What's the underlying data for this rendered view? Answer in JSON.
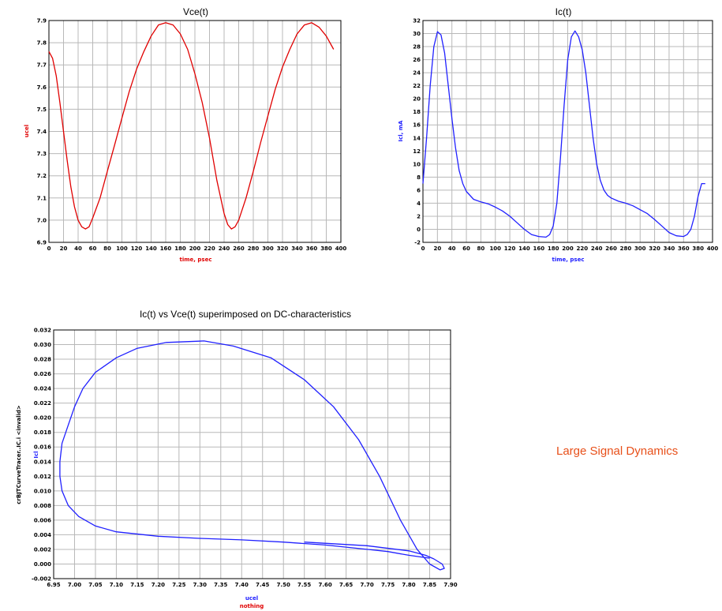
{
  "annotation": "Large Signal Dynamics",
  "colors": {
    "red": "#e00000",
    "blue": "#2020ff",
    "grid": "#b8b8b8"
  },
  "chart_data": [
    {
      "type": "line",
      "title": "Vce(t)",
      "xlabel": "time, psec",
      "ylabel": "ucel",
      "xlim": [
        0,
        400
      ],
      "ylim": [
        6.9,
        7.9
      ],
      "xticks": [
        "0",
        "20",
        "40",
        "60",
        "80",
        "100",
        "120",
        "140",
        "160",
        "180",
        "200",
        "220",
        "240",
        "260",
        "280",
        "300",
        "320",
        "340",
        "360",
        "380",
        "400"
      ],
      "yticks": [
        "6.9",
        "7.0",
        "7.1",
        "7.2",
        "7.3",
        "7.4",
        "7.5",
        "7.6",
        "7.7",
        "7.8",
        "7.9"
      ],
      "grid": true,
      "series": [
        {
          "color": "#e00000",
          "x": [
            0,
            5,
            10,
            15,
            20,
            25,
            30,
            35,
            40,
            45,
            50,
            55,
            60,
            70,
            80,
            90,
            100,
            110,
            120,
            130,
            140,
            150,
            160,
            170,
            180,
            190,
            200,
            210,
            220,
            230,
            240,
            245,
            250,
            255,
            260,
            270,
            280,
            290,
            300,
            310,
            320,
            330,
            340,
            350,
            360,
            370,
            380,
            390
          ],
          "y": [
            7.76,
            7.73,
            7.65,
            7.53,
            7.4,
            7.27,
            7.15,
            7.06,
            7.0,
            6.97,
            6.96,
            6.97,
            7.01,
            7.1,
            7.22,
            7.34,
            7.46,
            7.58,
            7.68,
            7.76,
            7.83,
            7.88,
            7.89,
            7.88,
            7.84,
            7.77,
            7.66,
            7.53,
            7.37,
            7.18,
            7.03,
            6.98,
            6.96,
            6.97,
            7.0,
            7.1,
            7.22,
            7.35,
            7.47,
            7.59,
            7.69,
            7.77,
            7.84,
            7.88,
            7.89,
            7.87,
            7.83,
            7.77
          ]
        }
      ]
    },
    {
      "type": "line",
      "title": "Ic(t)",
      "xlabel": "time, psec",
      "ylabel": "Icl, mA",
      "xlim": [
        0,
        400
      ],
      "ylim": [
        -2,
        32
      ],
      "xticks": [
        "0",
        "20",
        "40",
        "60",
        "80",
        "100",
        "120",
        "140",
        "160",
        "180",
        "200",
        "220",
        "240",
        "260",
        "280",
        "300",
        "320",
        "340",
        "360",
        "380",
        "400"
      ],
      "yticks": [
        "-2",
        "0",
        "2",
        "4",
        "6",
        "8",
        "10",
        "12",
        "14",
        "16",
        "18",
        "20",
        "22",
        "24",
        "26",
        "28",
        "30",
        "32"
      ],
      "grid": true,
      "series": [
        {
          "color": "#2020ff",
          "x": [
            0,
            5,
            10,
            15,
            20,
            25,
            30,
            35,
            40,
            45,
            50,
            55,
            60,
            70,
            80,
            90,
            100,
            110,
            120,
            130,
            140,
            150,
            160,
            170,
            175,
            180,
            185,
            190,
            195,
            200,
            205,
            210,
            215,
            220,
            225,
            230,
            235,
            240,
            245,
            250,
            255,
            260,
            270,
            280,
            290,
            300,
            310,
            320,
            330,
            340,
            350,
            360,
            365,
            370,
            375,
            380,
            385,
            390
          ],
          "y": [
            7,
            14,
            22,
            28,
            30.3,
            29.8,
            27,
            22,
            17,
            12.5,
            9,
            7,
            5.8,
            4.6,
            4.2,
            3.9,
            3.4,
            2.8,
            2.0,
            1.0,
            0,
            -0.8,
            -1.1,
            -1.2,
            -0.8,
            0.5,
            4,
            11,
            19,
            26,
            29.5,
            30.4,
            29.5,
            27.5,
            24,
            19,
            14,
            10,
            7.5,
            6,
            5.2,
            4.8,
            4.3,
            4.0,
            3.6,
            3.0,
            2.4,
            1.5,
            0.5,
            -0.5,
            -1.0,
            -1.1,
            -0.8,
            0,
            2,
            5,
            7,
            7
          ]
        }
      ]
    },
    {
      "type": "line",
      "title": "Ic(t) vs Vce(t) superimposed on DC-characteristics",
      "xlabel": "ucel",
      "xlabel2": "nothing",
      "ylabel": "crBJTCurveTracer..IC.i <invalid>",
      "ylabel2": "Icl",
      "xlim": [
        6.95,
        7.9
      ],
      "ylim": [
        -0.002,
        0.032
      ],
      "xticks": [
        "6.95",
        "7.00",
        "7.05",
        "7.10",
        "7.15",
        "7.20",
        "7.25",
        "7.30",
        "7.35",
        "7.40",
        "7.45",
        "7.50",
        "7.55",
        "7.60",
        "7.65",
        "7.70",
        "7.75",
        "7.80",
        "7.85",
        "7.90"
      ],
      "yticks": [
        "-0.002",
        "0.000",
        "0.002",
        "0.004",
        "0.006",
        "0.008",
        "0.010",
        "0.012",
        "0.014",
        "0.016",
        "0.018",
        "0.020",
        "0.022",
        "0.024",
        "0.026",
        "0.028",
        "0.030",
        "0.032"
      ],
      "grid": true,
      "series": [
        {
          "color": "#2020ff",
          "x": [
            7.85,
            7.8,
            7.75,
            7.7,
            7.6,
            7.5,
            7.4,
            7.3,
            7.2,
            7.1,
            7.05,
            7.01,
            6.985,
            6.97,
            6.965,
            6.965,
            6.97,
            6.985,
            7.0,
            7.02,
            7.05,
            7.1,
            7.15,
            7.22,
            7.31,
            7.38,
            7.47,
            7.55,
            7.62,
            7.68,
            7.73,
            7.78,
            7.82,
            7.85,
            7.875,
            7.885,
            7.88,
            7.86,
            7.84,
            7.8,
            7.7,
            7.55
          ],
          "y": [
            0.0008,
            0.0012,
            0.0017,
            0.002,
            0.0026,
            0.003,
            0.0033,
            0.0035,
            0.0038,
            0.0044,
            0.0052,
            0.0065,
            0.008,
            0.01,
            0.012,
            0.014,
            0.0165,
            0.019,
            0.0215,
            0.024,
            0.0262,
            0.0282,
            0.0295,
            0.0303,
            0.0305,
            0.0298,
            0.0282,
            0.0252,
            0.0215,
            0.017,
            0.012,
            0.006,
            0.002,
            0.0,
            -0.0008,
            -0.0006,
            0.0,
            0.0007,
            0.0012,
            0.0018,
            0.0025,
            0.003
          ]
        }
      ]
    }
  ]
}
